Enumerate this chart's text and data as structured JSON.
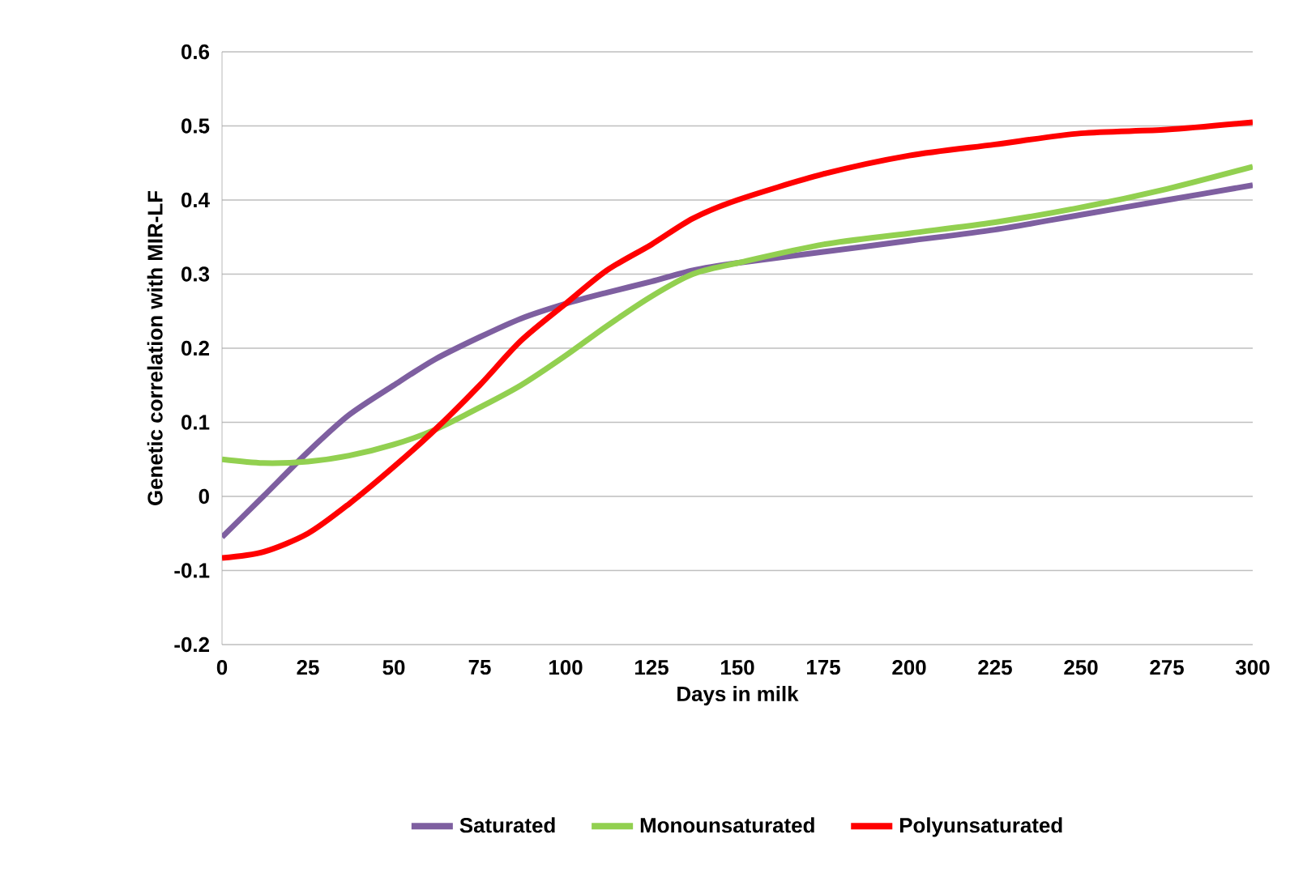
{
  "chart_data": {
    "type": "line",
    "xlabel": "Days in milk",
    "ylabel": "Genetic correlation with MIR-LF",
    "x": [
      0,
      12,
      25,
      37,
      50,
      62,
      75,
      87,
      100,
      112,
      125,
      137,
      150,
      175,
      200,
      225,
      250,
      275,
      300
    ],
    "series": [
      {
        "name": "Saturated",
        "color": "#7e5fa0",
        "values": [
          -0.055,
          0.0,
          0.06,
          0.11,
          0.15,
          0.185,
          0.215,
          0.24,
          0.26,
          0.275,
          0.29,
          0.305,
          0.315,
          0.33,
          0.345,
          0.36,
          0.38,
          0.4,
          0.42
        ]
      },
      {
        "name": "Monounsaturated",
        "color": "#92d050",
        "values": [
          0.05,
          0.045,
          0.047,
          0.055,
          0.07,
          0.09,
          0.12,
          0.15,
          0.19,
          0.23,
          0.27,
          0.3,
          0.315,
          0.34,
          0.355,
          0.37,
          0.39,
          0.415,
          0.445
        ]
      },
      {
        "name": "Polyunsaturated",
        "color": "#ff0000",
        "values": [
          -0.083,
          -0.075,
          -0.05,
          -0.01,
          0.04,
          0.09,
          0.15,
          0.21,
          0.26,
          0.305,
          0.34,
          0.375,
          0.4,
          0.435,
          0.46,
          0.475,
          0.49,
          0.495,
          0.505
        ]
      }
    ],
    "xlim": [
      0,
      300
    ],
    "xticks": [
      0,
      25,
      50,
      75,
      100,
      125,
      150,
      175,
      200,
      225,
      250,
      275,
      300
    ],
    "ylim": [
      -0.2,
      0.6
    ],
    "yticks": [
      -0.2,
      -0.1,
      0,
      0.1,
      0.2,
      0.3,
      0.4,
      0.5,
      0.6
    ],
    "grid": "y",
    "legend": "bottom",
    "marker": "none",
    "line_style": "solid"
  }
}
